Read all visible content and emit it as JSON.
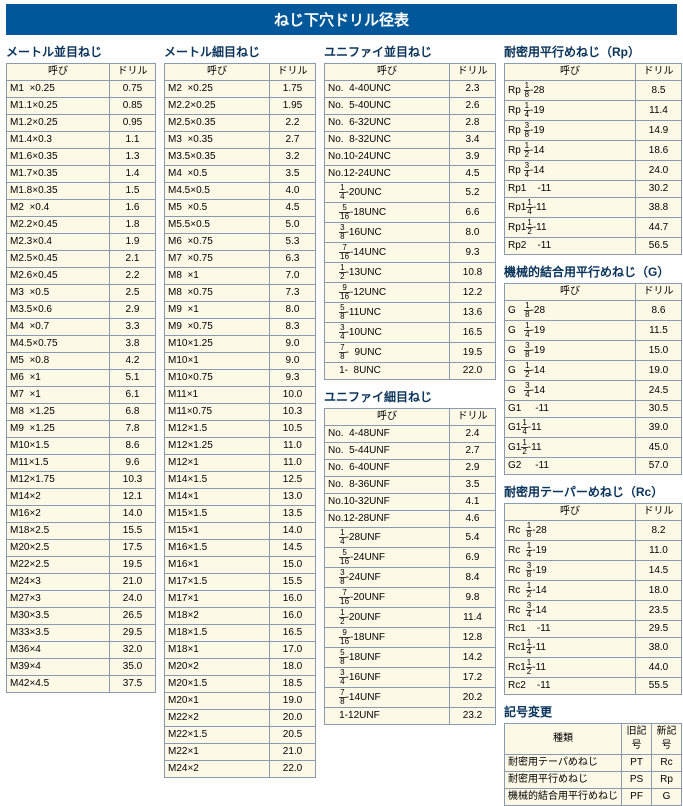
{
  "colors": {
    "headerBg": "#00589a",
    "rowBg": "#fcf9e6",
    "border": "#8a9bb0"
  },
  "mainTitle": "ねじ下穴ドリル径表",
  "headers": {
    "name": "呼び",
    "drill": "ドリル"
  },
  "sections": {
    "metricCoarse": {
      "title": "メートル並目ねじ",
      "rows": [
        [
          "M1  ×0.25",
          "0.75"
        ],
        [
          "M1.1×0.25",
          "0.85"
        ],
        [
          "M1.2×0.25",
          "0.95"
        ],
        [
          "M1.4×0.3",
          "1.1"
        ],
        [
          "M1.6×0.35",
          "1.3"
        ],
        [
          "M1.7×0.35",
          "1.4"
        ],
        [
          "M1.8×0.35",
          "1.5"
        ],
        [
          "M2  ×0.4",
          "1.6"
        ],
        [
          "M2.2×0.45",
          "1.8"
        ],
        [
          "M2.3×0.4",
          "1.9"
        ],
        [
          "M2.5×0.45",
          "2.1"
        ],
        [
          "M2.6×0.45",
          "2.2"
        ],
        [
          "M3  ×0.5",
          "2.5"
        ],
        [
          "M3.5×0.6",
          "2.9"
        ],
        [
          "M4  ×0.7",
          "3.3"
        ],
        [
          "M4.5×0.75",
          "3.8"
        ],
        [
          "M5  ×0.8",
          "4.2"
        ],
        [
          "M6  ×1",
          "5.1"
        ],
        [
          "M7  ×1",
          "6.1"
        ],
        [
          "M8  ×1.25",
          "6.8"
        ],
        [
          "M9  ×1.25",
          "7.8"
        ],
        [
          "M10×1.5",
          "8.6"
        ],
        [
          "M11×1.5",
          "9.6"
        ],
        [
          "M12×1.75",
          "10.3"
        ],
        [
          "M14×2",
          "12.1"
        ],
        [
          "M16×2",
          "14.0"
        ],
        [
          "M18×2.5",
          "15.5"
        ],
        [
          "M20×2.5",
          "17.5"
        ],
        [
          "M22×2.5",
          "19.5"
        ],
        [
          "M24×3",
          "21.0"
        ],
        [
          "M27×3",
          "24.0"
        ],
        [
          "M30×3.5",
          "26.5"
        ],
        [
          "M33×3.5",
          "29.5"
        ],
        [
          "M36×4",
          "32.0"
        ],
        [
          "M39×4",
          "35.0"
        ],
        [
          "M42×4.5",
          "37.5"
        ]
      ]
    },
    "metricFine": {
      "title": "メートル細目ねじ",
      "rows": [
        [
          "M2  ×0.25",
          "1.75"
        ],
        [
          "M2.2×0.25",
          "1.95"
        ],
        [
          "M2.5×0.35",
          "2.2"
        ],
        [
          "M3  ×0.35",
          "2.7"
        ],
        [
          "M3.5×0.35",
          "3.2"
        ],
        [
          "M4  ×0.5",
          "3.5"
        ],
        [
          "M4.5×0.5",
          "4.0"
        ],
        [
          "M5  ×0.5",
          "4.5"
        ],
        [
          "M5.5×0.5",
          "5.0"
        ],
        [
          "M6  ×0.75",
          "5.3"
        ],
        [
          "M7  ×0.75",
          "6.3"
        ],
        [
          "M8  ×1",
          "7.0"
        ],
        [
          "M8  ×0.75",
          "7.3"
        ],
        [
          "M9  ×1",
          "8.0"
        ],
        [
          "M9  ×0.75",
          "8.3"
        ],
        [
          "M10×1.25",
          "9.0"
        ],
        [
          "M10×1",
          "9.0"
        ],
        [
          "M10×0.75",
          "9.3"
        ],
        [
          "M11×1",
          "10.0"
        ],
        [
          "M11×0.75",
          "10.3"
        ],
        [
          "M12×1.5",
          "10.5"
        ],
        [
          "M12×1.25",
          "11.0"
        ],
        [
          "M12×1",
          "11.0"
        ],
        [
          "M14×1.5",
          "12.5"
        ],
        [
          "M14×1",
          "13.0"
        ],
        [
          "M15×1.5",
          "13.5"
        ],
        [
          "M15×1",
          "14.0"
        ],
        [
          "M16×1.5",
          "14.5"
        ],
        [
          "M16×1",
          "15.0"
        ],
        [
          "M17×1.5",
          "15.5"
        ],
        [
          "M17×1",
          "16.0"
        ],
        [
          "M18×2",
          "16.0"
        ],
        [
          "M18×1.5",
          "16.5"
        ],
        [
          "M18×1",
          "17.0"
        ],
        [
          "M20×2",
          "18.0"
        ],
        [
          "M20×1.5",
          "18.5"
        ],
        [
          "M20×1",
          "19.0"
        ],
        [
          "M22×2",
          "20.0"
        ],
        [
          "M22×1.5",
          "20.5"
        ],
        [
          "M22×1",
          "21.0"
        ],
        [
          "M24×2",
          "22.0"
        ]
      ]
    },
    "unc": {
      "title": "ユニファイ並目ねじ",
      "rows": [
        {
          "n": "No.  4-40UNC",
          "d": "2.3"
        },
        {
          "n": "No.  5-40UNC",
          "d": "2.6"
        },
        {
          "n": "No.  6-32UNC",
          "d": "2.8"
        },
        {
          "n": "No.  8-32UNC",
          "d": "3.4"
        },
        {
          "n": "No.10-24UNC",
          "d": "3.9"
        },
        {
          "n": "No.12-24UNC",
          "d": "4.5"
        },
        {
          "f": "1/4",
          "t": "-20UNC",
          "d": "5.2"
        },
        {
          "f": "5/16",
          "t": "-18UNC",
          "d": "6.6"
        },
        {
          "f": "3/8",
          "t": "-16UNC",
          "d": "8.0"
        },
        {
          "f": "7/16",
          "t": "-14UNC",
          "d": "9.3"
        },
        {
          "f": "1/2",
          "t": "-13UNC",
          "d": "10.8"
        },
        {
          "f": "9/16",
          "t": "-12UNC",
          "d": "12.2"
        },
        {
          "f": "5/8",
          "t": "-11UNC",
          "d": "13.6"
        },
        {
          "f": "3/4",
          "t": "-10UNC",
          "d": "16.5"
        },
        {
          "f": "7/8",
          "t": "-  9UNC",
          "d": "19.5"
        },
        {
          "n": "    1-  8UNC",
          "d": "22.0"
        }
      ]
    },
    "unf": {
      "title": "ユニファイ細目ねじ",
      "rows": [
        {
          "n": "No.  4-48UNF",
          "d": "2.4"
        },
        {
          "n": "No.  5-44UNF",
          "d": "2.7"
        },
        {
          "n": "No.  6-40UNF",
          "d": "2.9"
        },
        {
          "n": "No.  8-36UNF",
          "d": "3.5"
        },
        {
          "n": "No.10-32UNF",
          "d": "4.1"
        },
        {
          "n": "No.12-28UNF",
          "d": "4.6"
        },
        {
          "f": "1/4",
          "t": "-28UNF",
          "d": "5.4"
        },
        {
          "f": "5/16",
          "t": "-24UNF",
          "d": "6.9"
        },
        {
          "f": "3/8",
          "t": "-24UNF",
          "d": "8.4"
        },
        {
          "f": "7/16",
          "t": "-20UNF",
          "d": "9.8"
        },
        {
          "f": "1/2",
          "t": "-20UNF",
          "d": "11.4"
        },
        {
          "f": "9/16",
          "t": "-18UNF",
          "d": "12.8"
        },
        {
          "f": "5/8",
          "t": "-18UNF",
          "d": "14.2"
        },
        {
          "f": "3/4",
          "t": "-16UNF",
          "d": "17.2"
        },
        {
          "f": "7/8",
          "t": "-14UNF",
          "d": "20.2"
        },
        {
          "n": "    1-12UNF",
          "d": "23.2"
        }
      ]
    },
    "rp": {
      "title": "耐密用平行めねじ（Rp）",
      "rows": [
        {
          "p": "Rp ",
          "f": "1/8",
          "t": "-28",
          "d": "8.5"
        },
        {
          "p": "Rp ",
          "f": "1/4",
          "t": "-19",
          "d": "11.4"
        },
        {
          "p": "Rp ",
          "f": "3/8",
          "t": "-19",
          "d": "14.9"
        },
        {
          "p": "Rp ",
          "f": "1/2",
          "t": "-14",
          "d": "18.6"
        },
        {
          "p": "Rp ",
          "f": "3/4",
          "t": "-14",
          "d": "24.0"
        },
        {
          "n": "Rp1    -11",
          "d": "30.2"
        },
        {
          "p": "Rp1",
          "f": "1/4",
          "t": "-11",
          "d": "38.8"
        },
        {
          "p": "Rp1",
          "f": "1/2",
          "t": "-11",
          "d": "44.7"
        },
        {
          "n": "Rp2    -11",
          "d": "56.5"
        }
      ]
    },
    "g": {
      "title": "機械的結合用平行めねじ（G）",
      "rows": [
        {
          "p": "G   ",
          "f": "1/8",
          "t": "-28",
          "d": "8.6"
        },
        {
          "p": "G   ",
          "f": "1/4",
          "t": "-19",
          "d": "11.5"
        },
        {
          "p": "G   ",
          "f": "3/8",
          "t": "-19",
          "d": "15.0"
        },
        {
          "p": "G   ",
          "f": "1/2",
          "t": "-14",
          "d": "19.0"
        },
        {
          "p": "G   ",
          "f": "3/4",
          "t": "-14",
          "d": "24.5"
        },
        {
          "n": "G1     -11",
          "d": "30.5"
        },
        {
          "p": "G1",
          "f": "1/4",
          "t": "-11",
          "d": "39.0"
        },
        {
          "p": "G1",
          "f": "1/2",
          "t": "-11",
          "d": "45.0"
        },
        {
          "n": "G2     -11",
          "d": "57.0"
        }
      ]
    },
    "rc": {
      "title": "耐密用テーパーめねじ（Rc）",
      "rows": [
        {
          "p": "Rc  ",
          "f": "1/8",
          "t": "-28",
          "d": "8.2"
        },
        {
          "p": "Rc  ",
          "f": "1/4",
          "t": "-19",
          "d": "11.0"
        },
        {
          "p": "Rc  ",
          "f": "3/8",
          "t": "-19",
          "d": "14.5"
        },
        {
          "p": "Rc  ",
          "f": "1/2",
          "t": "-14",
          "d": "18.0"
        },
        {
          "p": "Rc  ",
          "f": "3/4",
          "t": "-14",
          "d": "23.5"
        },
        {
          "n": "Rc1    -11",
          "d": "29.5"
        },
        {
          "p": "Rc1",
          "f": "1/4",
          "t": "-11",
          "d": "38.0"
        },
        {
          "p": "Rc1",
          "f": "1/2",
          "t": "-11",
          "d": "44.0"
        },
        {
          "n": "Rc2    -11",
          "d": "55.5"
        }
      ]
    }
  },
  "symbolChange": {
    "title": "記号変更",
    "headers": [
      "種類",
      "旧記号",
      "新記号"
    ],
    "rows": [
      [
        "耐密用テーパめねじ",
        "PT",
        "Rc"
      ],
      [
        "耐密用平行めねじ",
        "PS",
        "Rp"
      ],
      [
        "機械的結合用平行めねじ",
        "PF",
        "G"
      ]
    ]
  }
}
